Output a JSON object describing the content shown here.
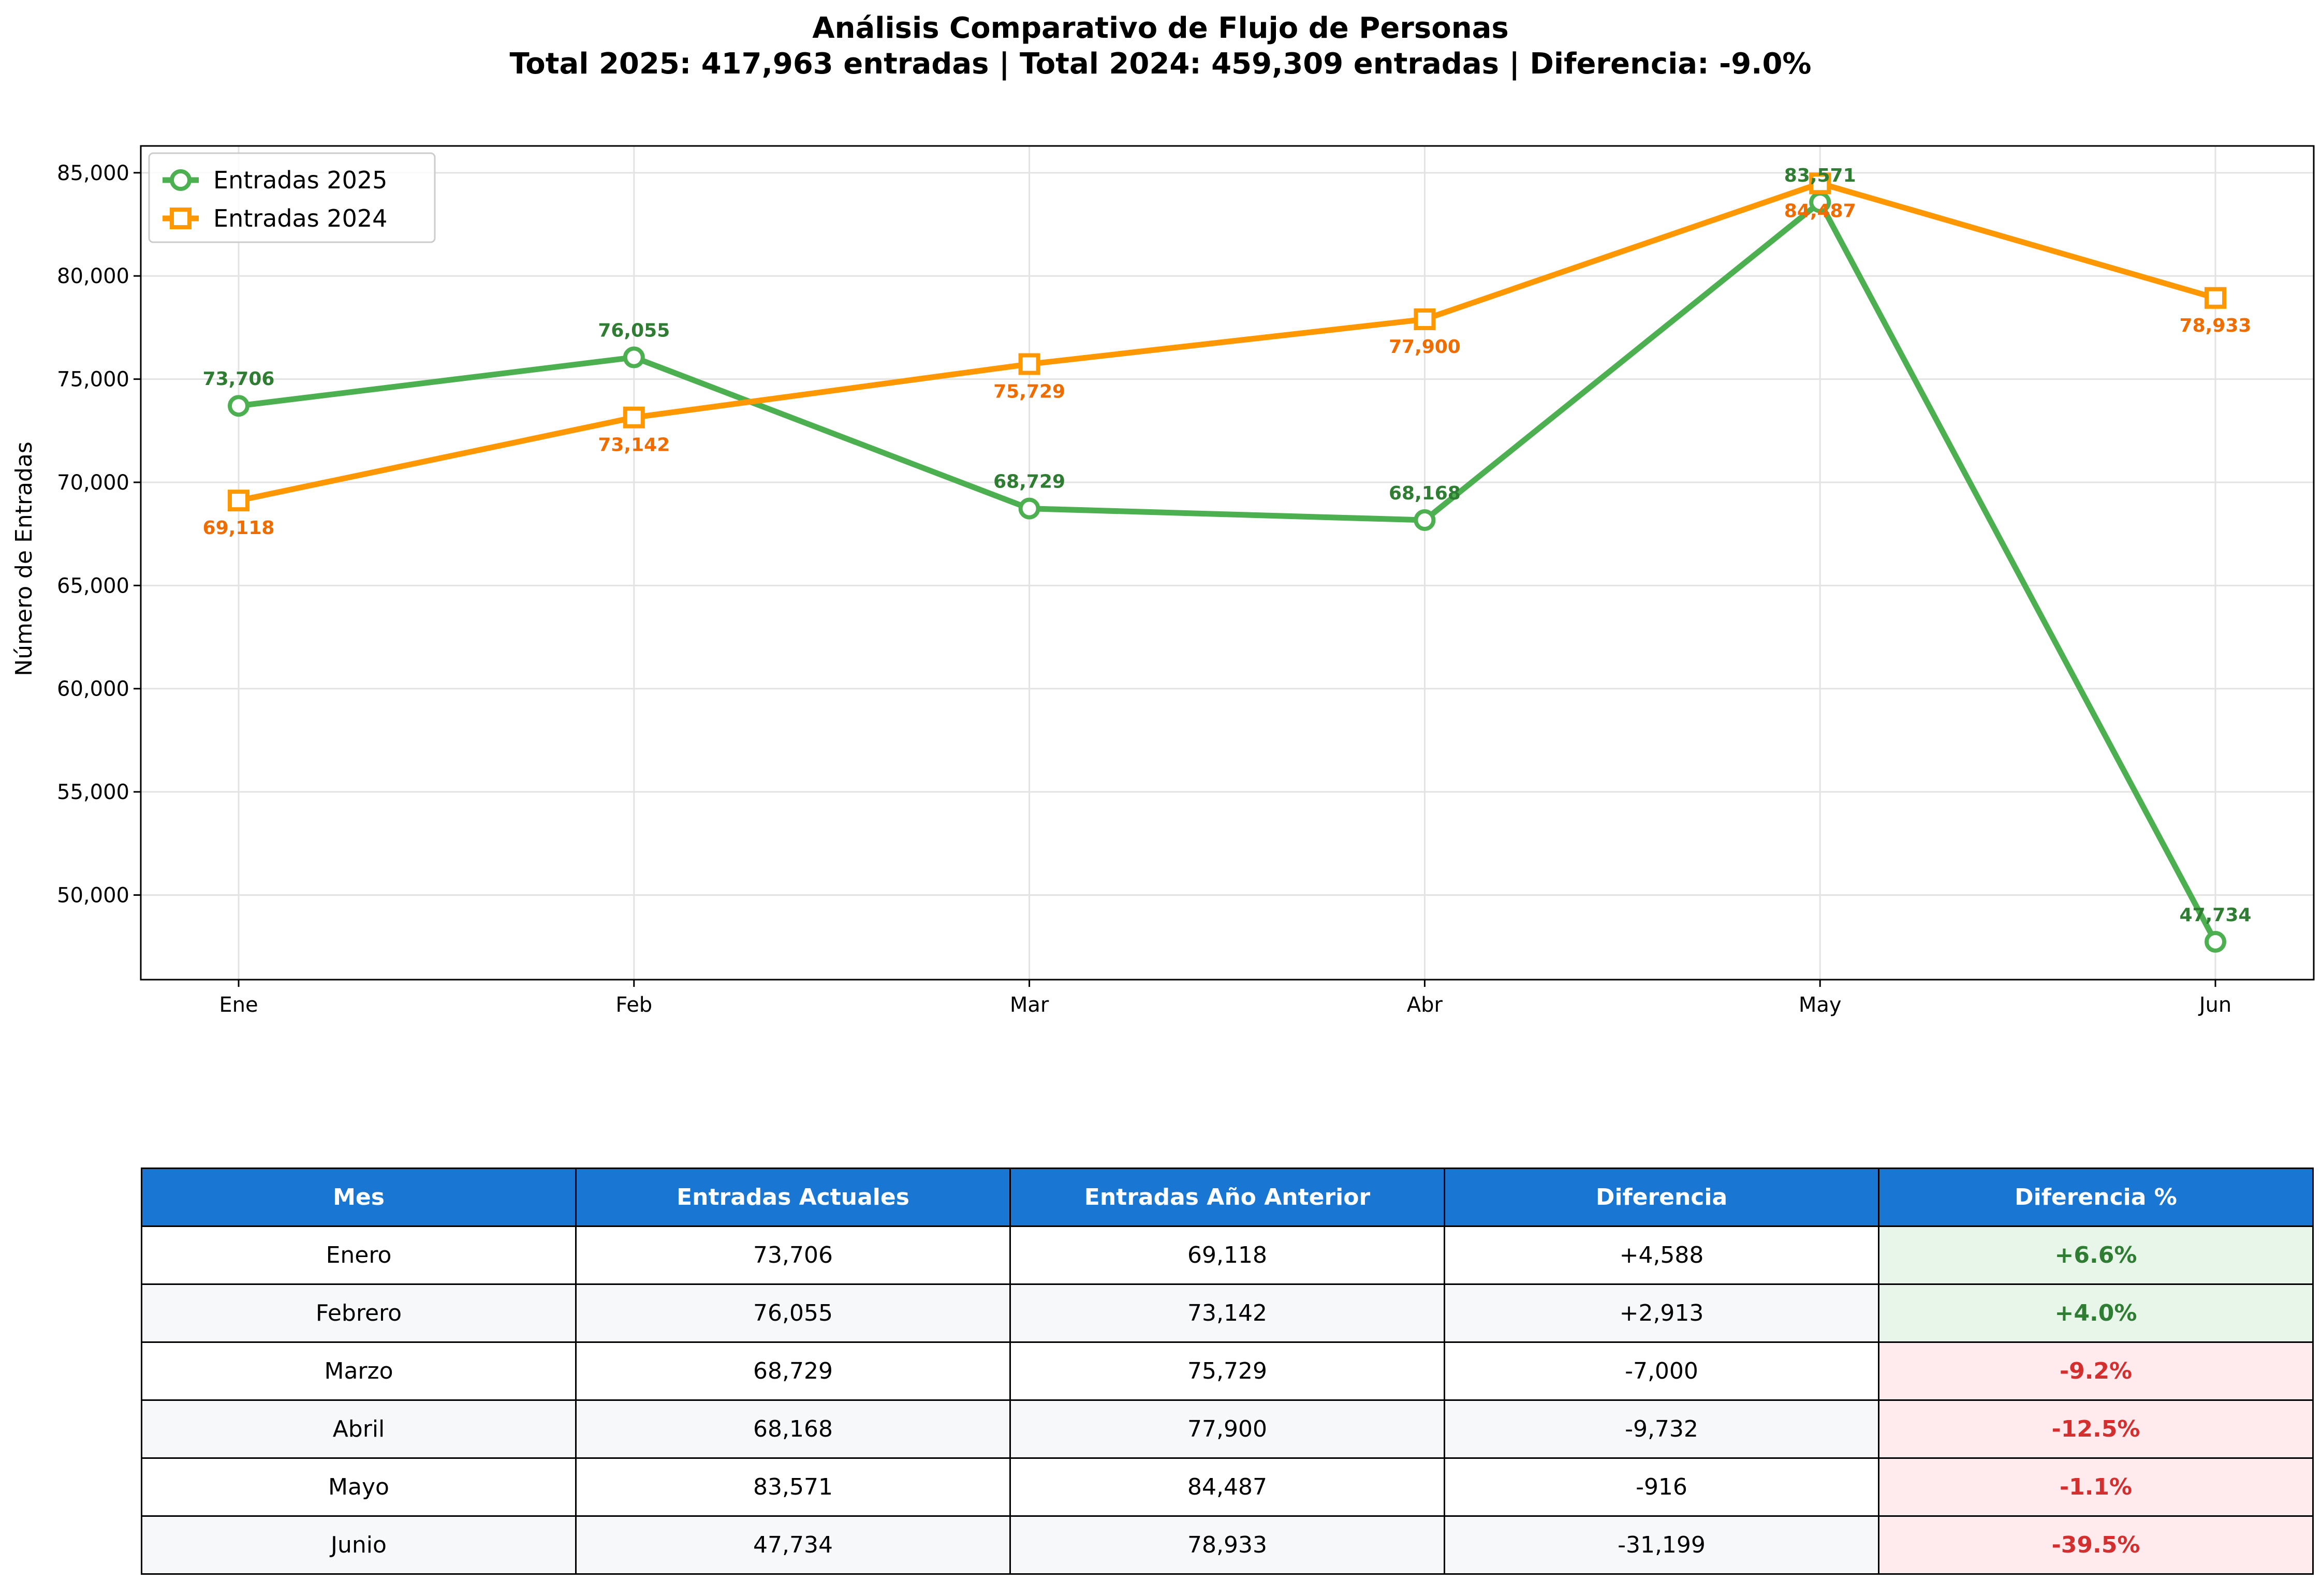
{
  "chart_data": {
    "type": "line",
    "title": "Análisis Comparativo de Flujo de Personas",
    "subtitle": "Total 2025: 417,963 entradas | Total 2024: 459,309 entradas | Diferencia: -9.0%",
    "xlabel": "",
    "ylabel": "Número de Entradas",
    "categories": [
      "Ene",
      "Feb",
      "Mar",
      "Abr",
      "May",
      "Jun"
    ],
    "ylim": [
      45900,
      86300
    ],
    "yticks": [
      50000,
      55000,
      60000,
      65000,
      70000,
      75000,
      80000,
      85000
    ],
    "ytick_labels": [
      "50,000",
      "55,000",
      "60,000",
      "65,000",
      "70,000",
      "75,000",
      "80,000",
      "85,000"
    ],
    "grid": true,
    "legend_position": "top-left",
    "series": [
      {
        "name": "Entradas 2025",
        "color": "#4caf50",
        "label_color": "#2e7d32",
        "marker": "circle",
        "values": [
          73706,
          76055,
          68729,
          68168,
          83571,
          47734
        ],
        "labels": [
          "73,706",
          "76,055",
          "68,729",
          "68,168",
          "83,571",
          "47,734"
        ]
      },
      {
        "name": "Entradas 2024",
        "color": "#ff9800",
        "label_color": "#ef6c00",
        "marker": "square",
        "values": [
          69118,
          73142,
          75729,
          77900,
          84487,
          78933
        ],
        "labels": [
          "69,118",
          "73,142",
          "75,729",
          "77,900",
          "84,487",
          "78,933"
        ]
      }
    ]
  },
  "table": {
    "headers": [
      "Mes",
      "Entradas Actuales",
      "Entradas Año Anterior",
      "Diferencia",
      "Diferencia %"
    ],
    "rows": [
      {
        "mes": "Enero",
        "actual": "73,706",
        "anterior": "69,118",
        "diferencia": "+4,588",
        "pct": "+6.6%",
        "status": "pos"
      },
      {
        "mes": "Febrero",
        "actual": "76,055",
        "anterior": "73,142",
        "diferencia": "+2,913",
        "pct": "+4.0%",
        "status": "pos"
      },
      {
        "mes": "Marzo",
        "actual": "68,729",
        "anterior": "75,729",
        "diferencia": "-7,000",
        "pct": "-9.2%",
        "status": "neg"
      },
      {
        "mes": "Abril",
        "actual": "68,168",
        "anterior": "77,900",
        "diferencia": "-9,732",
        "pct": "-12.5%",
        "status": "neg"
      },
      {
        "mes": "Mayo",
        "actual": "83,571",
        "anterior": "84,487",
        "diferencia": "-916",
        "pct": "-1.1%",
        "status": "neg"
      },
      {
        "mes": "Junio",
        "actual": "47,734",
        "anterior": "78,933",
        "diferencia": "-31,199",
        "pct": "-39.5%",
        "status": "neg"
      }
    ]
  }
}
